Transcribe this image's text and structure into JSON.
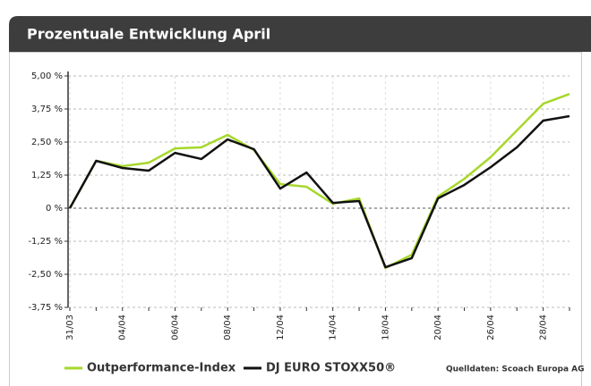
{
  "chart_data": {
    "type": "line",
    "title": "Prozentuale Entwicklung April",
    "categories": [
      "31/03",
      null,
      "04/04",
      null,
      "06/04",
      null,
      "08/04",
      null,
      "12/04",
      null,
      "14/04",
      null,
      "18/04",
      null,
      "20/04",
      null,
      "26/04",
      null,
      "28/04",
      null
    ],
    "series": [
      {
        "name": "Outperformance-Index",
        "color": "#a6d82a",
        "values": [
          0,
          1.79,
          1.59,
          1.72,
          2.26,
          2.3,
          2.77,
          2.2,
          0.91,
          0.81,
          0.17,
          0.37,
          -2.26,
          -1.76,
          0.44,
          1.11,
          1.93,
          2.94,
          3.95,
          4.32
        ]
      },
      {
        "name": "DJ EURO STOXX50®",
        "color": "#111111",
        "values": [
          0,
          1.79,
          1.52,
          1.42,
          2.09,
          1.86,
          2.6,
          2.23,
          0.74,
          1.35,
          0.2,
          0.27,
          -2.23,
          -1.89,
          0.37,
          0.88,
          1.55,
          2.3,
          3.31,
          3.48
        ]
      }
    ],
    "ylim": [
      -3.75,
      5.0
    ],
    "yticks": [
      {
        "value": -3.75,
        "label": "-3,75 %"
      },
      {
        "value": -2.5,
        "label": "-2,50 %"
      },
      {
        "value": -1.25,
        "label": "-1,25 %"
      },
      {
        "value": 0,
        "label": "0 %"
      },
      {
        "value": 1.25,
        "label": "1,25 %"
      },
      {
        "value": 2.5,
        "label": "2,50 %"
      },
      {
        "value": 3.75,
        "label": "3,75 %"
      },
      {
        "value": 5.0,
        "label": "5,00 %"
      }
    ],
    "grid": true,
    "annotation": "Quelldaten: Scoach Europa AG"
  }
}
